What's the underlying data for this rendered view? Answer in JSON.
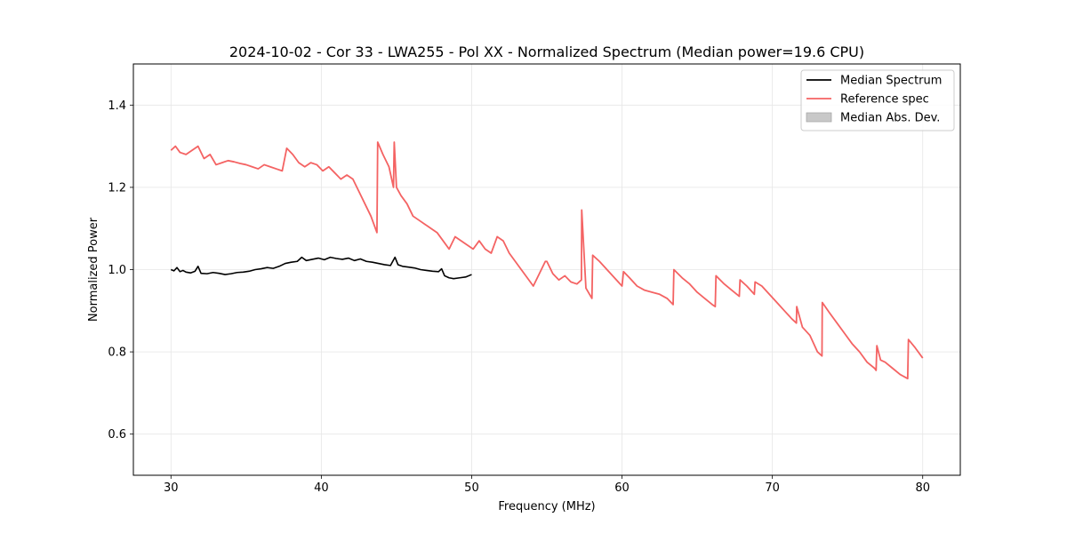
{
  "chart_data": {
    "type": "line",
    "title": "2024-10-02 - Cor 33 - LWA255 - Pol XX - Normalized Spectrum (Median power=19.6 CPU)",
    "xlabel": "Frequency (MHz)",
    "ylabel": "Normalized Power",
    "xlim": [
      27.5,
      82.5
    ],
    "ylim": [
      0.5,
      1.5
    ],
    "xticks": [
      30,
      40,
      50,
      60,
      70,
      80
    ],
    "yticks": [
      0.6,
      0.8,
      1.0,
      1.2,
      1.4
    ],
    "xtick_labels": [
      "30",
      "40",
      "50",
      "60",
      "70",
      "80"
    ],
    "ytick_labels": [
      "0.6",
      "0.8",
      "1.0",
      "1.2",
      "1.4"
    ],
    "grid": true,
    "legend_position": "top-right",
    "legend": [
      {
        "label": "Median Spectrum",
        "kind": "line",
        "color": "#000000"
      },
      {
        "label": "Reference spec",
        "kind": "line",
        "color": "#f46363"
      },
      {
        "label": "Median Abs. Dev.",
        "kind": "patch",
        "color": "#c8c8c8"
      }
    ],
    "series": [
      {
        "name": "Median Spectrum",
        "color": "#000000",
        "x": [
          30.0,
          30.2,
          30.4,
          30.6,
          30.8,
          31.0,
          31.3,
          31.6,
          31.8,
          32.0,
          32.4,
          32.8,
          33.2,
          33.6,
          34.0,
          34.4,
          34.8,
          35.2,
          35.6,
          36.0,
          36.4,
          36.8,
          37.2,
          37.6,
          38.0,
          38.4,
          38.7,
          39.0,
          39.4,
          39.8,
          40.2,
          40.6,
          41.0,
          41.4,
          41.8,
          42.2,
          42.6,
          43.0,
          43.4,
          43.8,
          44.2,
          44.6,
          44.9,
          45.1,
          45.4,
          45.8,
          46.2,
          46.6,
          47.0,
          47.4,
          47.8,
          48.0,
          48.2,
          48.5,
          48.8,
          49.2,
          49.6,
          50.0
        ],
        "values": [
          1.0,
          0.997,
          1.005,
          0.995,
          0.998,
          0.994,
          0.992,
          0.996,
          1.008,
          0.991,
          0.99,
          0.993,
          0.991,
          0.988,
          0.99,
          0.993,
          0.994,
          0.996,
          1.0,
          1.002,
          1.005,
          1.003,
          1.008,
          1.015,
          1.018,
          1.02,
          1.03,
          1.022,
          1.025,
          1.028,
          1.024,
          1.03,
          1.027,
          1.025,
          1.028,
          1.022,
          1.026,
          1.02,
          1.018,
          1.015,
          1.012,
          1.01,
          1.03,
          1.012,
          1.008,
          1.006,
          1.004,
          1.0,
          0.998,
          0.996,
          0.995,
          1.002,
          0.985,
          0.98,
          0.978,
          0.98,
          0.982,
          0.988
        ]
      },
      {
        "name": "Reference spec",
        "color": "#f46363",
        "x": [
          30.0,
          30.3,
          30.6,
          31.0,
          31.4,
          31.8,
          32.2,
          32.6,
          33.0,
          33.4,
          33.8,
          34.2,
          34.6,
          35.0,
          35.4,
          35.8,
          36.2,
          36.6,
          37.0,
          37.4,
          37.7,
          38.1,
          38.5,
          38.9,
          39.3,
          39.7,
          40.1,
          40.5,
          40.9,
          41.3,
          41.7,
          42.1,
          42.5,
          42.9,
          43.3,
          43.7,
          43.75,
          44.1,
          44.5,
          44.8,
          44.85,
          45.0,
          45.3,
          45.7,
          46.1,
          46.5,
          46.9,
          47.3,
          47.7,
          48.1,
          48.5,
          48.9,
          49.3,
          49.7,
          50.1,
          50.5,
          50.9,
          51.3,
          51.7,
          52.1,
          52.5,
          52.9,
          53.3,
          53.7,
          54.1,
          54.5,
          54.9,
          55.0,
          55.4,
          55.8,
          56.2,
          56.6,
          57.0,
          57.3,
          57.32,
          57.6,
          58.0,
          58.05,
          58.5,
          59.0,
          59.5,
          60.0,
          60.1,
          60.5,
          61.0,
          61.5,
          62.0,
          62.5,
          63.0,
          63.4,
          63.45,
          64.0,
          64.5,
          65.0,
          65.5,
          66.0,
          66.2,
          66.25,
          66.8,
          67.3,
          67.8,
          67.85,
          68.3,
          68.8,
          68.85,
          69.3,
          69.8,
          70.3,
          70.8,
          71.3,
          71.6,
          71.62,
          72.0,
          72.5,
          73.0,
          73.3,
          73.32,
          73.8,
          74.3,
          74.8,
          75.3,
          75.8,
          76.3,
          76.8,
          76.9,
          76.95,
          77.2,
          77.5,
          78.0,
          78.5,
          79.0,
          79.05,
          79.5,
          80.0
        ],
        "values": [
          1.29,
          1.3,
          1.285,
          1.28,
          1.29,
          1.3,
          1.27,
          1.28,
          1.255,
          1.26,
          1.265,
          1.262,
          1.258,
          1.255,
          1.25,
          1.245,
          1.255,
          1.25,
          1.245,
          1.24,
          1.295,
          1.28,
          1.26,
          1.25,
          1.26,
          1.255,
          1.24,
          1.25,
          1.235,
          1.22,
          1.23,
          1.22,
          1.19,
          1.16,
          1.13,
          1.09,
          1.31,
          1.28,
          1.25,
          1.2,
          1.31,
          1.2,
          1.18,
          1.16,
          1.13,
          1.12,
          1.11,
          1.1,
          1.09,
          1.07,
          1.05,
          1.08,
          1.07,
          1.06,
          1.05,
          1.07,
          1.05,
          1.04,
          1.08,
          1.07,
          1.04,
          1.02,
          1.0,
          0.98,
          0.96,
          0.99,
          1.02,
          1.02,
          0.99,
          0.975,
          0.985,
          0.97,
          0.965,
          0.975,
          1.145,
          0.955,
          0.93,
          1.035,
          1.02,
          1.0,
          0.98,
          0.96,
          0.995,
          0.98,
          0.96,
          0.95,
          0.945,
          0.94,
          0.93,
          0.915,
          1.0,
          0.98,
          0.965,
          0.945,
          0.93,
          0.915,
          0.91,
          0.985,
          0.965,
          0.95,
          0.935,
          0.975,
          0.96,
          0.94,
          0.97,
          0.96,
          0.94,
          0.92,
          0.9,
          0.88,
          0.87,
          0.91,
          0.86,
          0.84,
          0.8,
          0.79,
          0.92,
          0.895,
          0.87,
          0.845,
          0.82,
          0.8,
          0.775,
          0.76,
          0.755,
          0.815,
          0.78,
          0.775,
          0.76,
          0.745,
          0.735,
          0.83,
          0.81,
          0.785
        ]
      }
    ]
  }
}
